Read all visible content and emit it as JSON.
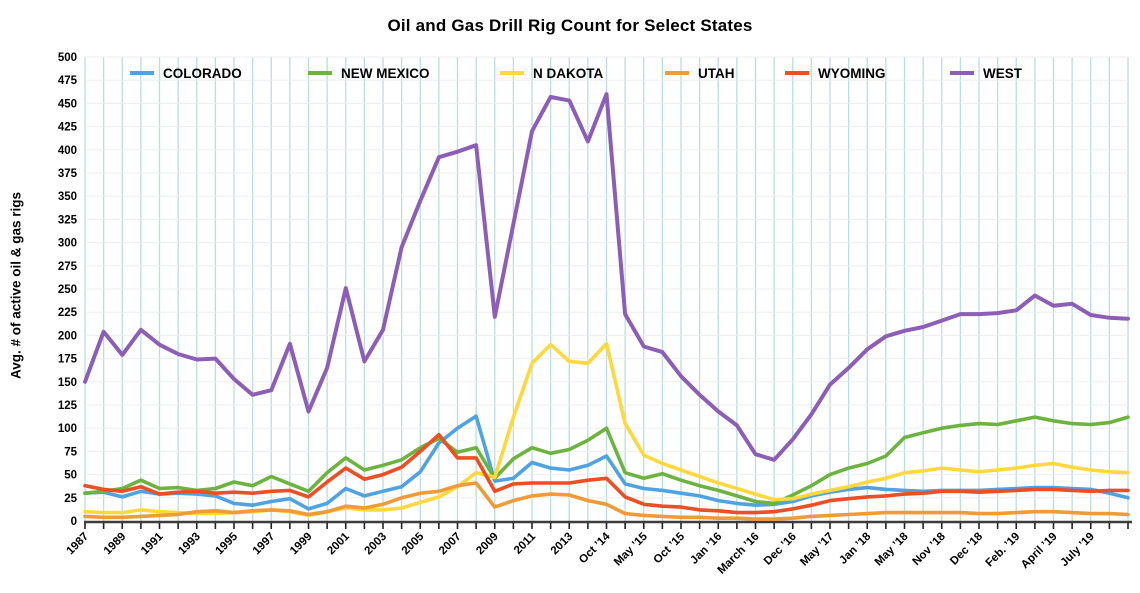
{
  "page": {
    "title": "Oil and Gas Drill Rig Count for Select States"
  },
  "chart_data": {
    "type": "line",
    "title": "Oil and Gas Drill Rig Count for Select States",
    "xlabel": "",
    "ylabel": "Avg. # of active oil & gas rigs",
    "ylim": [
      0,
      500
    ],
    "y_tick_step": 25,
    "grid": true,
    "legend_position": "top-inside",
    "style": {
      "background": "#ffffff",
      "v_gridline": "#b9dde1",
      "h_gridline": "#ededed",
      "axis_line": "#3c3c3c",
      "tick_mark": "#222222",
      "text_color": "#000000"
    },
    "categories": [
      "1987",
      "",
      "1989",
      "",
      "1991",
      "",
      "1993",
      "",
      "1995",
      "",
      "1997",
      "",
      "1999",
      "",
      "2001",
      "",
      "2003",
      "",
      "2005",
      "",
      "2007",
      "",
      "2009",
      "",
      "2011",
      "",
      "2013",
      "",
      "Oct ’14",
      "",
      "May ’15",
      "",
      "Oct ’15",
      "",
      "Jan ’16",
      "",
      "March ’16",
      "",
      "Dec ’16",
      "",
      "May ’17",
      "",
      "Jan ’18",
      "",
      "May ’18",
      "",
      "Nov ’18",
      "",
      "Dec ’18",
      "",
      "Feb. ’19",
      "",
      "April ’19",
      "",
      "July ’19",
      "",
      ""
    ],
    "x_tick_labels": [
      "1987",
      "1989",
      "1991",
      "1993",
      "1995",
      "1997",
      "1999",
      "2001",
      "2003",
      "2005",
      "2007",
      "2009",
      "2011",
      "2013",
      "Oct ’14",
      "May ’15",
      "Oct ’15",
      "Jan ’16",
      "March ’16",
      "Dec ’16",
      "May ’17",
      "Jan ’18",
      "May ’18",
      "Nov ’18",
      "Dec ’18",
      "Feb. ’19",
      "April ’19",
      "July ’19"
    ],
    "series": [
      {
        "name": "COLORADO",
        "color": "#4fa3e3",
        "values": [
          30,
          31,
          26,
          32,
          29,
          30,
          29,
          27,
          19,
          17,
          21,
          24,
          13,
          19,
          35,
          27,
          32,
          37,
          53,
          84,
          100,
          113,
          43,
          46,
          63,
          57,
          55,
          60,
          70,
          40,
          35,
          33,
          30,
          27,
          22,
          19,
          17,
          18,
          21,
          27,
          31,
          34,
          36,
          34,
          33,
          32,
          33,
          33,
          33,
          34,
          35,
          36,
          36,
          35,
          34,
          30,
          25
        ]
      },
      {
        "name": "NEW MEXICO",
        "color": "#6db33f",
        "values": [
          30,
          32,
          35,
          44,
          35,
          36,
          33,
          35,
          42,
          38,
          48,
          40,
          32,
          52,
          68,
          55,
          60,
          66,
          79,
          89,
          74,
          79,
          46,
          67,
          79,
          73,
          77,
          87,
          100,
          52,
          46,
          51,
          44,
          38,
          33,
          27,
          21,
          19,
          28,
          38,
          50,
          57,
          62,
          70,
          90,
          95,
          100,
          103,
          105,
          104,
          108,
          112,
          108,
          105,
          104,
          106,
          112
        ]
      },
      {
        "name": "N DAKOTA",
        "color": "#ffd83d",
        "values": [
          10,
          9,
          9,
          12,
          10,
          9,
          8,
          8,
          9,
          10,
          12,
          10,
          6,
          10,
          14,
          12,
          12,
          14,
          20,
          26,
          37,
          52,
          47,
          112,
          170,
          190,
          172,
          170,
          191,
          105,
          71,
          62,
          55,
          48,
          41,
          35,
          29,
          23,
          24,
          29,
          33,
          37,
          42,
          46,
          52,
          54,
          57,
          55,
          53,
          55,
          57,
          60,
          62,
          58,
          55,
          53,
          52
        ]
      },
      {
        "name": "UTAH",
        "color": "#ef9b38",
        "values": [
          5,
          4,
          4,
          5,
          6,
          7,
          10,
          11,
          9,
          11,
          12,
          11,
          7,
          10,
          16,
          14,
          18,
          25,
          30,
          32,
          38,
          41,
          15,
          22,
          27,
          29,
          28,
          22,
          18,
          8,
          6,
          5,
          4,
          4,
          3,
          3,
          2,
          2,
          3,
          5,
          6,
          7,
          8,
          9,
          9,
          9,
          9,
          9,
          8,
          8,
          9,
          10,
          10,
          9,
          8,
          8,
          7
        ]
      },
      {
        "name": "WYOMING",
        "color": "#ee4e23",
        "values": [
          38,
          34,
          32,
          37,
          29,
          31,
          32,
          30,
          31,
          30,
          32,
          33,
          26,
          42,
          57,
          45,
          50,
          58,
          75,
          93,
          68,
          68,
          32,
          40,
          41,
          41,
          41,
          44,
          46,
          26,
          18,
          16,
          15,
          12,
          11,
          9,
          9,
          10,
          13,
          17,
          22,
          24,
          26,
          27,
          29,
          30,
          32,
          32,
          31,
          32,
          33,
          34,
          34,
          33,
          32,
          33,
          33
        ]
      },
      {
        "name": "WEST",
        "color": "#8d5eb7",
        "values": [
          150,
          204,
          179,
          206,
          190,
          180,
          174,
          175,
          153,
          136,
          141,
          191,
          118,
          165,
          251,
          172,
          206,
          295,
          345,
          392,
          398,
          405,
          220,
          320,
          420,
          457,
          453,
          409,
          460,
          223,
          188,
          182,
          156,
          136,
          118,
          103,
          72,
          66,
          88,
          115,
          147,
          165,
          185,
          199,
          205,
          209,
          216,
          223,
          223,
          224,
          227,
          243,
          232,
          234,
          222,
          219,
          218
        ]
      }
    ],
    "legend": {
      "y": 73,
      "positions": [
        130,
        308,
        500,
        665,
        785,
        950
      ]
    },
    "y_tick_values": [
      0,
      25,
      50,
      75,
      100,
      125,
      150,
      175,
      200,
      225,
      250,
      275,
      300,
      325,
      350,
      375,
      400,
      425,
      450,
      475,
      500
    ]
  }
}
